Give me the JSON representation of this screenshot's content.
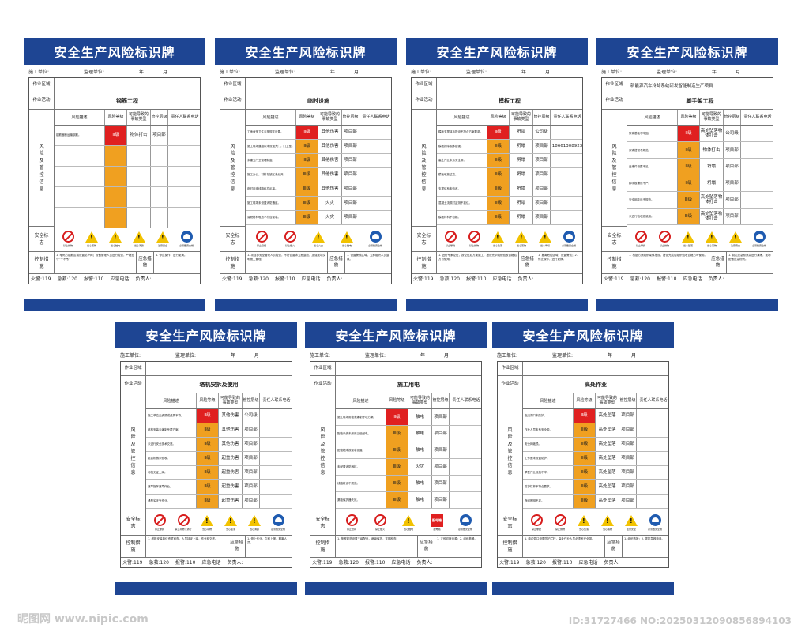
{
  "colors": {
    "brand": "#1e4593",
    "red": "#e02020",
    "orange": "#f0a020",
    "yellow": "#f6c33a",
    "blue": "#3574c6"
  },
  "common": {
    "title": "安全生产风险标识牌",
    "construction_unit": "施工单位:",
    "supervision_unit": "监理单位:",
    "year": "年",
    "month": "月",
    "work_area": "作业区域",
    "work_activity": "作业活动",
    "risk_info": "风险及管控信息",
    "col_desc": "风险描述",
    "col_level": "风险等级",
    "col_accident": "可能导致的事故类型",
    "col_mgmt": "管控层级",
    "col_contact": "责任人联系电话",
    "safety_sign": "安全标志",
    "control": "控制措施",
    "emergency": "应急措施",
    "fire": "火警:119",
    "ambulance": "急救:120",
    "police": "报警:110",
    "emergency_phone": "应急电话",
    "person": "负责人:"
  },
  "boards": [
    {
      "activity": "钢筋工程",
      "project": "",
      "rows": [
        {
          "desc": "钢筋截断运输钢筋。",
          "level": "Ⅱ级",
          "lc": "red",
          "acc": "物体打击",
          "mgmt": "项目部",
          "tel": ""
        },
        {
          "desc": "",
          "level": "",
          "lc": "or",
          "acc": "",
          "mgmt": "",
          "tel": ""
        },
        {
          "desc": "",
          "level": "",
          "lc": "or",
          "acc": "",
          "mgmt": "",
          "tel": ""
        },
        {
          "desc": "",
          "level": "",
          "lc": "or",
          "acc": "",
          "mgmt": "",
          "tel": ""
        },
        {
          "desc": "",
          "level": "",
          "lc": "or",
          "acc": "",
          "mgmt": "",
          "tel": ""
        }
      ],
      "signs": [
        "禁止抛物",
        "当心落物",
        "当心触电",
        "当心滑跌",
        "注意安全",
        "必须戴安全帽"
      ],
      "ctrl": "1. 堆码方钢筋区域设置防护网；设备管理人员进行检查，严格遵守“十不吊”",
      "emer": "1. 停止操作，进行更换。"
    },
    {
      "activity": "临时设施",
      "project": "",
      "rows": [
        {
          "desc": "工地食堂卫生未按规定设置。",
          "level": "Ⅱ级",
          "lc": "red",
          "acc": "其他伤害",
          "mgmt": "项目部",
          "tel": ""
        },
        {
          "desc": "施工现场道路口未设置大门，门卫室。",
          "level": "Ⅱ级",
          "lc": "or",
          "acc": "其他伤害",
          "mgmt": "项目部",
          "tel": ""
        },
        {
          "desc": "未建立门卫管理制度。",
          "level": "Ⅱ级",
          "lc": "or",
          "acc": "其他伤害",
          "mgmt": "项目部",
          "tel": ""
        },
        {
          "desc": "施工办公、材料存放区未分开。",
          "level": "Ⅲ级",
          "lc": "or",
          "acc": "其他伤害",
          "mgmt": "项目部",
          "tel": ""
        },
        {
          "desc": "临时用电线路私拉乱接。",
          "level": "Ⅲ级",
          "lc": "or",
          "acc": "其他伤害",
          "mgmt": "项目部",
          "tel": ""
        },
        {
          "desc": "施工现场未设置消防通道。",
          "level": "Ⅲ级",
          "lc": "or",
          "acc": "火灾",
          "mgmt": "项目部",
          "tel": ""
        },
        {
          "desc": "易燃材料堆放不符合要求。",
          "level": "Ⅲ级",
          "lc": "or",
          "acc": "火灾",
          "mgmt": "项目部",
          "tel": ""
        }
      ],
      "signs": [
        "禁止吸烟",
        "禁止烟火",
        "当心火灾",
        "当心触电",
        "必须戴安全帽"
      ],
      "ctrl": "1. 项目部安全管理人员检查，不符合要求立即整改，加强现场文明施工管理。",
      "emer": "1. 设置警戒区域，立即组织人员整改。"
    },
    {
      "activity": "模板工程",
      "project": "",
      "rows": [
        {
          "desc": "模板支撑体系搭设不符合方案要求。",
          "level": "Ⅱ级",
          "lc": "red",
          "acc": "坍塌",
          "mgmt": "公司级",
          "tel": ""
        },
        {
          "desc": "模板拆除顺序错误。",
          "level": "Ⅲ级",
          "lc": "or",
          "acc": "坍塌",
          "mgmt": "项目部",
          "tel": "18661308923"
        },
        {
          "desc": "高处作业未系安全带。",
          "level": "Ⅲ级",
          "lc": "or",
          "acc": "坍塌",
          "mgmt": "项目部",
          "tel": ""
        },
        {
          "desc": "模板堆放过高。",
          "level": "Ⅲ级",
          "lc": "or",
          "acc": "坍塌",
          "mgmt": "项目部",
          "tel": ""
        },
        {
          "desc": "支撑体系未验收。",
          "level": "Ⅲ级",
          "lc": "or",
          "acc": "坍塌",
          "mgmt": "项目部",
          "tel": ""
        },
        {
          "desc": "混凝土浇筑时监测不到位。",
          "level": "Ⅲ级",
          "lc": "or",
          "acc": "坍塌",
          "mgmt": "项目部",
          "tel": ""
        },
        {
          "desc": "模板材料不合格。",
          "level": "Ⅲ级",
          "lc": "or",
          "acc": "坍塌",
          "mgmt": "项目部",
          "tel": ""
        }
      ],
      "signs": [
        "禁止攀爬",
        "禁止抛物",
        "当心坠落",
        "当心落物",
        "当心坍塌",
        "必须戴安全帽"
      ],
      "ctrl": "1. 进行专家论证，按论证后方案施工，搭设完毕组织验收合格后方可使用。",
      "emer": "1. 撤离危险区域，设置警戒；2. 停止操作，进行更换。"
    },
    {
      "activity": "脚手架工程",
      "project": "新能源汽车冷却系统研发智能制造生产项目",
      "rows": [
        {
          "desc": "架体基础不牢固。",
          "level": "Ⅱ级",
          "lc": "red",
          "acc": "高处坠落物体打击",
          "mgmt": "公司级",
          "tel": ""
        },
        {
          "desc": "架体搭设不规范。",
          "level": "Ⅱ级",
          "lc": "or",
          "acc": "物体打击",
          "mgmt": "项目部",
          "tel": ""
        },
        {
          "desc": "连墙件设置不足。",
          "level": "Ⅱ级",
          "lc": "or",
          "acc": "坍塌",
          "mgmt": "项目部",
          "tel": ""
        },
        {
          "desc": "脚手板铺设不严。",
          "level": "Ⅱ级",
          "lc": "or",
          "acc": "坍塌",
          "mgmt": "项目部",
          "tel": ""
        },
        {
          "desc": "安全网挂设不规范。",
          "level": "Ⅲ级",
          "lc": "or",
          "acc": "高处坠落物体打击",
          "mgmt": "项目部",
          "tel": ""
        },
        {
          "desc": "未进行验收即使用。",
          "level": "Ⅲ级",
          "lc": "or",
          "acc": "高处坠落物体打击",
          "mgmt": "项目部",
          "tel": ""
        }
      ],
      "signs": [
        "禁止攀爬",
        "禁止抛物",
        "当心坠落",
        "当心落物",
        "注意安全",
        "必须戴安全帽"
      ],
      "ctrl": "1. 根据方案组织架体搭设，搭设完成后组织验收合格方可使用。",
      "emer": "1. 制定应急预案并进行演练，现场配备应急物资。"
    },
    {
      "activity": "塔机安拆及使用",
      "project": "",
      "rows": [
        {
          "desc": "施工单位无资质或资质不符。",
          "level": "Ⅱ级",
          "lc": "red",
          "acc": "其他伤害",
          "mgmt": "公司级",
          "tel": ""
        },
        {
          "desc": "塔机安装未编制专项方案。",
          "level": "Ⅱ级",
          "lc": "or",
          "acc": "其他伤害",
          "mgmt": "项目部",
          "tel": ""
        },
        {
          "desc": "未进行安全技术交底。",
          "level": "Ⅱ级",
          "lc": "or",
          "acc": "其他伤害",
          "mgmt": "项目部",
          "tel": ""
        },
        {
          "desc": "起重机械未验收。",
          "level": "Ⅱ级",
          "lc": "or",
          "acc": "起重伤害",
          "mgmt": "项目部",
          "tel": ""
        },
        {
          "desc": "司机无证上岗。",
          "level": "Ⅱ级",
          "lc": "or",
          "acc": "起重伤害",
          "mgmt": "项目部",
          "tel": ""
        },
        {
          "desc": "违章指挥违章作业。",
          "level": "Ⅱ级",
          "lc": "or",
          "acc": "起重伤害",
          "mgmt": "项目部",
          "tel": ""
        },
        {
          "desc": "遇恶劣天气作业。",
          "level": "Ⅱ级",
          "lc": "or",
          "acc": "起重伤害",
          "mgmt": "项目部",
          "tel": ""
        }
      ],
      "signs": [
        "禁止攀爬",
        "禁止吊物下通行",
        "当心吊物",
        "当心坠落",
        "当心滑跌",
        "必须戴安全帽"
      ],
      "ctrl": "1. 塔机安装单位资质审查，人员持证上岗，作业前交底。",
      "emer": "1. 停止作业，立即上报，撤离人员。"
    },
    {
      "activity": "施工用电",
      "project": "",
      "rows": [
        {
          "desc": "施工现场用电未编制专项方案。",
          "level": "Ⅱ级",
          "lc": "red",
          "acc": "触电",
          "mgmt": "项目部",
          "tel": ""
        },
        {
          "desc": "配电系统未采用三级配电。",
          "level": "Ⅲ级",
          "lc": "or",
          "acc": "触电",
          "mgmt": "项目部",
          "tel": ""
        },
        {
          "desc": "配电箱未按要求设置。",
          "level": "Ⅲ级",
          "lc": "or",
          "acc": "触电",
          "mgmt": "项目部",
          "tel": ""
        },
        {
          "desc": "未配置消防器材。",
          "level": "Ⅲ级",
          "lc": "or",
          "acc": "火灾",
          "mgmt": "项目部",
          "tel": ""
        },
        {
          "desc": "线路敷设不规范。",
          "level": "Ⅲ级",
          "lc": "or",
          "acc": "触电",
          "mgmt": "项目部",
          "tel": ""
        },
        {
          "desc": "漏电保护器失效。",
          "level": "Ⅲ级",
          "lc": "or",
          "acc": "触电",
          "mgmt": "项目部",
          "tel": ""
        }
      ],
      "signs": [
        "禁止合闸",
        "禁止烟火",
        "当心触电",
        "配电箱",
        "必须戴安全帽"
      ],
      "ctrl": "1. 按照规范设置三级配电，两级保护，定期检查。",
      "emer": "1. 立即切断电源；2. 组织救援。"
    },
    {
      "activity": "高处作业",
      "project": "",
      "rows": [
        {
          "desc": "临边洞口未防护。",
          "level": "Ⅱ级",
          "lc": "red",
          "acc": "高处坠落",
          "mgmt": "项目部",
          "tel": ""
        },
        {
          "desc": "作业人员未系安全带。",
          "level": "Ⅲ级",
          "lc": "or",
          "acc": "高处坠落",
          "mgmt": "项目部",
          "tel": ""
        },
        {
          "desc": "安全网破损。",
          "level": "Ⅲ级",
          "lc": "or",
          "acc": "高处坠落",
          "mgmt": "项目部",
          "tel": ""
        },
        {
          "desc": "工作面未设置防护。",
          "level": "Ⅲ级",
          "lc": "or",
          "acc": "高处坠落",
          "mgmt": "项目部",
          "tel": ""
        },
        {
          "desc": "攀登作业设施不牢。",
          "level": "Ⅲ级",
          "lc": "or",
          "acc": "高处坠落",
          "mgmt": "项目部",
          "tel": ""
        },
        {
          "desc": "防护栏杆不符合要求。",
          "level": "Ⅲ级",
          "lc": "or",
          "acc": "高处坠落",
          "mgmt": "项目部",
          "tel": ""
        },
        {
          "desc": "夜间照明不足。",
          "level": "Ⅲ级",
          "lc": "or",
          "acc": "高处坠落",
          "mgmt": "项目部",
          "tel": ""
        }
      ],
      "signs": [
        "禁止攀爬",
        "禁止抛物",
        "当心坠落",
        "当心落物",
        "注意安全",
        "必须戴安全帽"
      ],
      "ctrl": "1. 临边洞口设置防护栏杆，高处作业人员必须系安全带。",
      "emer": "1. 组织救援；2. 拨打急救电话。"
    }
  ],
  "watermark": {
    "left": "昵图网 www.nipic.com",
    "right": "ID:31727466 NO:20250312090856894103"
  }
}
